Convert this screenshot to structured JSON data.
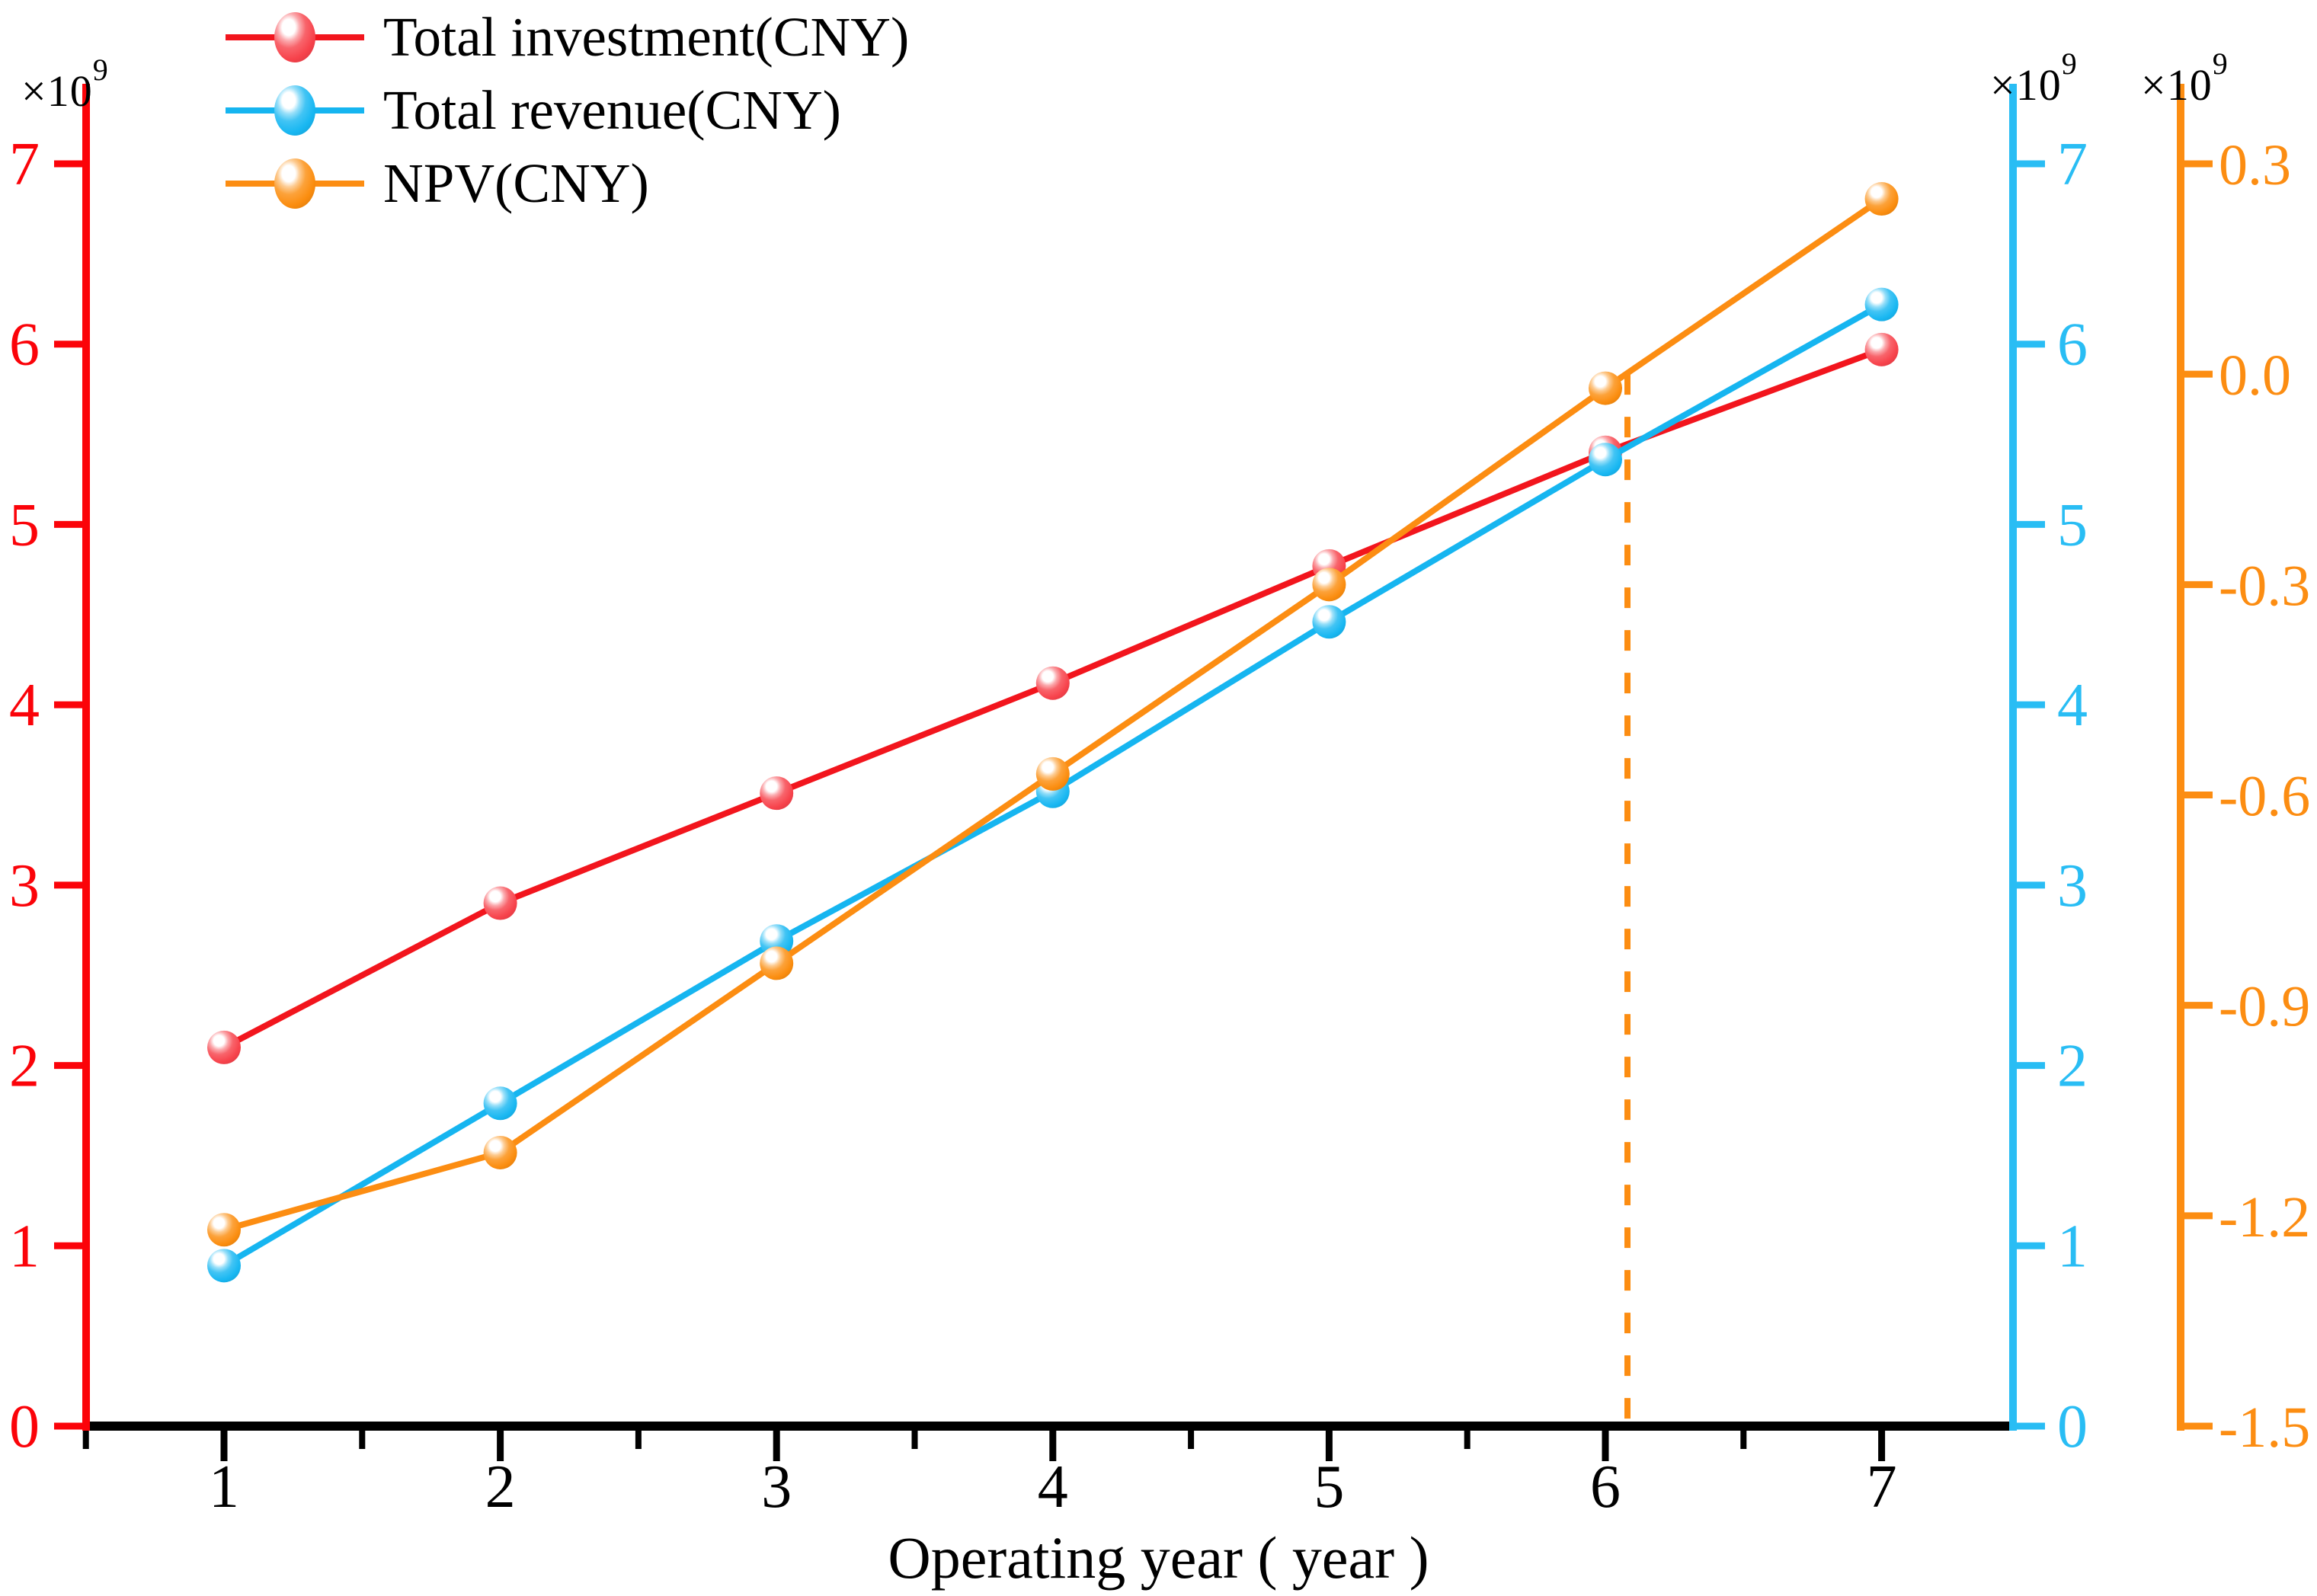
{
  "legend": {
    "items": [
      {
        "label": "Total investment(CNY)"
      },
      {
        "label": "Total revenue(CNY)"
      },
      {
        "label": "NPV(CNY)"
      }
    ]
  },
  "chart_data": {
    "type": "line",
    "title": "",
    "xlabel": "Operating year ( year )",
    "x": [
      1,
      2,
      3,
      4,
      5,
      6,
      7
    ],
    "x_minor_ticks": [
      0.5,
      1.5,
      2.5,
      3.5,
      4.5,
      5.5,
      6.5
    ],
    "x_range": [
      0.5,
      7.5
    ],
    "grid": "off",
    "legend_position": "top-left",
    "series": [
      {
        "name": "Total investment(CNY)",
        "axis": "left",
        "color": "#f2151d",
        "ball_color": "#f7424b",
        "values": [
          2.1,
          2.9,
          3.51,
          4.12,
          4.77,
          5.4,
          5.97
        ]
      },
      {
        "name": "Total revenue(CNY)",
        "axis": "right_inner",
        "color": "#16b5f0",
        "ball_color": "#18b7f2",
        "values": [
          0.89,
          1.79,
          2.69,
          3.52,
          4.46,
          5.36,
          6.22
        ]
      },
      {
        "name": "NPV(CNY)",
        "axis": "right_outer",
        "color": "#fc8d12",
        "ball_color": "#fb8d0f",
        "values": [
          -1.22,
          -1.11,
          -0.84,
          -0.57,
          -0.3,
          -0.02,
          0.25
        ]
      }
    ],
    "axes": {
      "left": {
        "scale_base": "×10",
        "scale_exp": "9",
        "color": "#fb0309",
        "range": [
          0,
          7
        ],
        "ticks": [
          0,
          1,
          2,
          3,
          4,
          5,
          6,
          7
        ]
      },
      "right_inner": {
        "scale_base": "×10",
        "scale_exp": "9",
        "color": "#29bdf4",
        "range": [
          0,
          7
        ],
        "ticks": [
          0,
          1,
          2,
          3,
          4,
          5,
          6,
          7
        ]
      },
      "right_outer": {
        "scale_base": "×10",
        "scale_exp": "9",
        "color": "#fc8d12",
        "range": [
          -1.5,
          0.3
        ],
        "ticks": [
          "0.3",
          "0.0",
          "-0.3",
          "-0.6",
          "-0.9",
          "-1.2",
          "-1.5"
        ]
      },
      "bottom": {
        "label": "Operating year ( year )",
        "color": "#000000",
        "ticks": [
          1,
          2,
          3,
          4,
          5,
          6,
          7
        ]
      }
    },
    "annotations": [
      {
        "type": "vline",
        "name": "npv-breakeven",
        "x": 6.08,
        "axis": "right_outer",
        "y_top_value": 0.0,
        "y_bottom_value": -1.5,
        "line_style": "dashed",
        "color": "#fc8d12"
      }
    ]
  }
}
